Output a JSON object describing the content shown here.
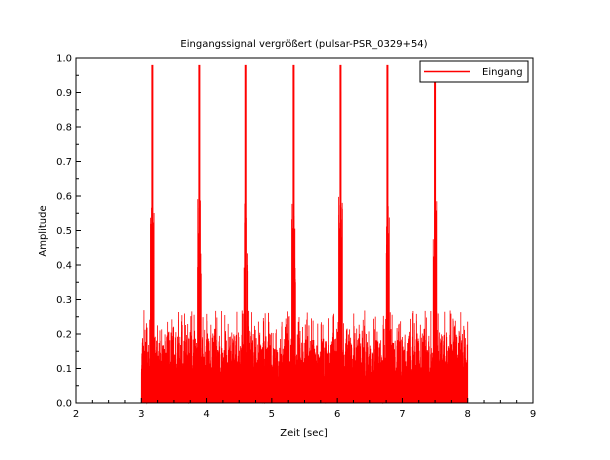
{
  "chart_data": {
    "type": "line",
    "title": "Eingangssignal vergrößert (pulsar-PSR_0329+54)",
    "xlabel": "Zeit [sec]",
    "ylabel": "Amplitude",
    "xlim": [
      2,
      9
    ],
    "ylim": [
      0,
      1
    ],
    "xticks": [
      "2",
      "3",
      "4",
      "5",
      "6",
      "7",
      "8",
      "9"
    ],
    "yticks": [
      "0.0",
      "0.1",
      "0.2",
      "0.3",
      "0.4",
      "0.5",
      "0.6",
      "0.7",
      "0.8",
      "0.9",
      "1.0"
    ],
    "grid": false,
    "legend": {
      "placement": "top-right",
      "entries": [
        "Eingang"
      ]
    },
    "series": [
      {
        "name": "Eingang",
        "color": "#ff0000",
        "signal_start": 3.0,
        "signal_end": 8.0,
        "noise_level": 0.15,
        "noise_peak": 0.27,
        "pulses": [
          {
            "x": 3.17,
            "y": 0.98
          },
          {
            "x": 3.89,
            "y": 0.98
          },
          {
            "x": 4.6,
            "y": 0.98
          },
          {
            "x": 5.33,
            "y": 0.98
          },
          {
            "x": 6.05,
            "y": 0.98
          },
          {
            "x": 6.77,
            "y": 0.98
          },
          {
            "x": 7.5,
            "y": 0.98
          }
        ]
      }
    ]
  }
}
